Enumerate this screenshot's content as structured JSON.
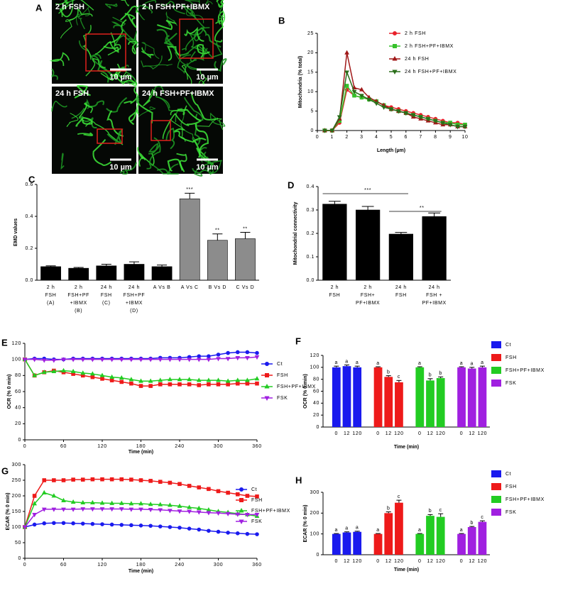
{
  "panel_a": {
    "label": "A",
    "images": [
      {
        "caption": "2 h FSH",
        "scale_bar": "10 µm"
      },
      {
        "caption": "2 h FSH+PF+IBMX",
        "scale_bar": "10 µm"
      },
      {
        "caption": "24 h FSH",
        "scale_bar": "10 µm"
      },
      {
        "caption": "24 h FSH+PF+IBMX",
        "scale_bar": "10 µm"
      }
    ]
  },
  "chart_data": [
    {
      "type": "line",
      "panel": "B",
      "xlabel": "Length (µm)",
      "ylabel": "Mitochondria (% total)",
      "x": [
        0.5,
        1,
        1.5,
        2,
        2.5,
        3,
        3.5,
        4,
        4.5,
        5,
        5.5,
        6,
        6.5,
        7,
        7.5,
        8,
        8.5,
        9,
        9.5,
        10
      ],
      "xlim": [
        0,
        10
      ],
      "xticks": [
        0,
        1,
        2,
        3,
        4,
        5,
        6,
        7,
        8,
        9,
        10
      ],
      "ylim": [
        0,
        25
      ],
      "yticks": [
        0,
        5,
        10,
        15,
        20,
        25
      ],
      "series": [
        {
          "name": "2 h FSH",
          "color": "#e8212a",
          "marker": "circle",
          "values": [
            0,
            0,
            2,
            10.5,
            9,
            8.5,
            8,
            7.5,
            6.5,
            6,
            5.5,
            5,
            4.5,
            4,
            3.5,
            3,
            2.5,
            2,
            2,
            1.5
          ]
        },
        {
          "name": "2 h FSH+PF+IBMX",
          "color": "#36c12a",
          "marker": "square",
          "values": [
            0,
            0,
            2.5,
            11.5,
            9,
            8.5,
            8,
            7.5,
            6.5,
            5.5,
            5,
            4.5,
            4,
            3.5,
            3,
            2.5,
            2,
            2,
            1.5,
            1.5
          ]
        },
        {
          "name": "24 h FSH",
          "color": "#a01818",
          "marker": "triangle",
          "values": [
            0,
            0,
            3,
            20,
            11,
            10.5,
            8.5,
            7.5,
            6.5,
            5.5,
            5,
            4.5,
            3.5,
            3,
            2.5,
            2,
            1.5,
            1.5,
            1,
            1
          ]
        },
        {
          "name": "24 h FSH+PF+IBMX",
          "color": "#2a6e1a",
          "marker": "triangle-down",
          "values": [
            0,
            0,
            3.5,
            15,
            10,
            9,
            8,
            7,
            6,
            5.5,
            5,
            4.5,
            4,
            3.5,
            3,
            2.5,
            2,
            1.5,
            1,
            1
          ]
        }
      ]
    },
    {
      "type": "bar",
      "panel": "C",
      "ylabel": "EMD values",
      "categories": [
        [
          "2 h",
          "FSH",
          "(A)"
        ],
        [
          "2 h",
          "FSH+PF",
          "+IBMX",
          "(B)"
        ],
        [
          "24 h",
          "FSH",
          "(C)"
        ],
        [
          "24 h",
          "FSH+PF",
          "+IBMX",
          "(D)"
        ],
        [
          "A Vs B"
        ],
        [
          "A Vs C"
        ],
        [
          "B Vs D"
        ],
        [
          "C Vs D"
        ]
      ],
      "values": [
        0.085,
        0.075,
        0.09,
        0.1,
        0.085,
        0.51,
        0.25,
        0.26
      ],
      "errors": [
        0.005,
        0.005,
        0.01,
        0.015,
        0.01,
        0.035,
        0.04,
        0.04
      ],
      "colors": [
        "#000000",
        "#000000",
        "#000000",
        "#000000",
        "#000000",
        "#8c8c8c",
        "#8c8c8c",
        "#8c8c8c"
      ],
      "significance": [
        null,
        null,
        null,
        null,
        null,
        "***",
        "**",
        "**"
      ],
      "ylim": [
        0,
        0.6
      ],
      "yticks": [
        {
          "value": 0,
          "label": "0.0"
        },
        0.2,
        0.4,
        0.6
      ]
    },
    {
      "type": "bar",
      "panel": "D",
      "ylabel": "Mitochondrial connectivity",
      "categories": [
        [
          "2 h",
          "FSH"
        ],
        [
          "2 h",
          "FSH+",
          "PF+IBMX"
        ],
        [
          "24 h",
          "FSH"
        ],
        [
          "24 h",
          "FSH +",
          "PF+IBMX"
        ]
      ],
      "values": [
        0.325,
        0.3,
        0.197,
        0.272
      ],
      "errors": [
        0.012,
        0.015,
        0.007,
        0.015
      ],
      "colors": [
        "#000000",
        "#000000",
        "#000000",
        "#000000"
      ],
      "annotations": [
        "***",
        "**"
      ],
      "ylim": [
        0,
        0.4
      ],
      "yticks": [
        {
          "value": 0,
          "label": "0.0"
        },
        0.1,
        0.2,
        0.3,
        0.4
      ]
    },
    {
      "type": "line",
      "panel": "E",
      "xlabel": "Time (min)",
      "ylabel": "OCR (% 0 min)",
      "x": [
        0,
        15,
        30,
        45,
        60,
        75,
        90,
        105,
        120,
        135,
        150,
        165,
        180,
        195,
        210,
        225,
        240,
        255,
        270,
        285,
        300,
        315,
        330,
        345,
        360
      ],
      "xlim": [
        0,
        360
      ],
      "xticks": [
        0,
        60,
        120,
        180,
        240,
        300,
        360
      ],
      "ylim": [
        0,
        120
      ],
      "yticks": [
        0,
        20,
        40,
        60,
        80,
        100,
        120
      ],
      "series": [
        {
          "name": "Ct",
          "color": "#1a1aee",
          "marker": "circle",
          "values": [
            100,
            101,
            101,
            100,
            100,
            101,
            101,
            101,
            101,
            101,
            101,
            101,
            101,
            101,
            102,
            102,
            102,
            103,
            104,
            104,
            106,
            108,
            109,
            109,
            108
          ]
        },
        {
          "name": "FSH",
          "color": "#ee1a1a",
          "marker": "square",
          "values": [
            100,
            80,
            84,
            86,
            84,
            82,
            80,
            78,
            76,
            74,
            72,
            70,
            67,
            67,
            69,
            69,
            69,
            69,
            68,
            69,
            69,
            69,
            70,
            70,
            70
          ]
        },
        {
          "name": "FSH+PF+IBMX",
          "color": "#22cc22",
          "marker": "triangle",
          "values": [
            100,
            80,
            84,
            85,
            86,
            85,
            83,
            82,
            80,
            78,
            77,
            75,
            73,
            73,
            74,
            75,
            75,
            75,
            74,
            74,
            74,
            73,
            74,
            74,
            76
          ]
        },
        {
          "name": "FSK",
          "color": "#a020e0",
          "marker": "triangle-down",
          "values": [
            100,
            100,
            99,
            99,
            100,
            100,
            100,
            100,
            100,
            100,
            100,
            100,
            100,
            100,
            100,
            100,
            100,
            100,
            100,
            100,
            101,
            101,
            102,
            102,
            103
          ]
        }
      ]
    },
    {
      "type": "bar",
      "panel": "F",
      "xlabel": "Time (min)",
      "ylabel": "OCR (% 0 min)",
      "categories": [
        "0",
        "12",
        "120"
      ],
      "ylim": [
        0,
        120
      ],
      "yticks": [
        0,
        20,
        40,
        60,
        80,
        100,
        120
      ],
      "series": [
        {
          "name": "Ct",
          "color": "#1a1aee",
          "values": [
            100,
            102,
            100
          ],
          "errors": [
            2,
            2,
            2
          ],
          "letters": [
            "a",
            "a",
            "a"
          ]
        },
        {
          "name": "FSH",
          "color": "#ee1a1a",
          "values": [
            100,
            84,
            75
          ],
          "errors": [
            1,
            2,
            3
          ],
          "letters": [
            "a",
            "b",
            "c"
          ]
        },
        {
          "name": "FSH+PF+IBMX",
          "color": "#22cc22",
          "values": [
            100,
            78,
            82
          ],
          "errors": [
            1,
            3,
            2
          ],
          "letters": [
            "a",
            "b",
            "b"
          ]
        },
        {
          "name": "FSK",
          "color": "#a020e0",
          "values": [
            100,
            98,
            100
          ],
          "errors": [
            1,
            2,
            2
          ],
          "letters": [
            "a",
            "a",
            "a"
          ]
        }
      ]
    },
    {
      "type": "line",
      "panel": "G",
      "xlabel": "Time (min)",
      "ylabel": "ECAR (% 0 min)",
      "x": [
        0,
        15,
        30,
        45,
        60,
        75,
        90,
        105,
        120,
        135,
        150,
        165,
        180,
        195,
        210,
        225,
        240,
        255,
        270,
        285,
        300,
        315,
        330,
        345,
        360
      ],
      "xlim": [
        0,
        360
      ],
      "xticks": [
        0,
        60,
        120,
        180,
        240,
        300,
        360
      ],
      "ylim": [
        0,
        300
      ],
      "yticks": [
        0,
        50,
        100,
        150,
        200,
        250,
        300
      ],
      "series": [
        {
          "name": "Ct",
          "color": "#1a1aee",
          "marker": "circle",
          "values": [
            100,
            108,
            112,
            113,
            113,
            112,
            111,
            110,
            109,
            108,
            107,
            106,
            105,
            104,
            102,
            100,
            98,
            95,
            92,
            88,
            85,
            82,
            80,
            78,
            77
          ]
        },
        {
          "name": "FSH",
          "color": "#ee1a1a",
          "marker": "square",
          "values": [
            100,
            200,
            250,
            250,
            250,
            252,
            252,
            253,
            253,
            253,
            253,
            252,
            250,
            248,
            245,
            242,
            238,
            232,
            227,
            222,
            215,
            210,
            205,
            200,
            198
          ]
        },
        {
          "name": "FSH+PF+IBMX",
          "color": "#22cc22",
          "marker": "triangle",
          "values": [
            100,
            175,
            210,
            200,
            185,
            180,
            178,
            178,
            177,
            176,
            176,
            175,
            175,
            173,
            172,
            170,
            167,
            163,
            160,
            155,
            150,
            147,
            143,
            140,
            135
          ]
        },
        {
          "name": "FSK",
          "color": "#a020e0",
          "marker": "triangle-down",
          "values": [
            100,
            140,
            157,
            157,
            157,
            157,
            158,
            158,
            158,
            158,
            158,
            157,
            157,
            156,
            155,
            153,
            151,
            150,
            148,
            146,
            145,
            143,
            141,
            140,
            140
          ]
        }
      ]
    },
    {
      "type": "bar",
      "panel": "H",
      "xlabel": "Time (min)",
      "ylabel": "ECAR (% 0 min)",
      "categories": [
        "0",
        "12",
        "120"
      ],
      "ylim": [
        0,
        300
      ],
      "yticks": [
        0,
        100,
        200,
        300
      ],
      "series": [
        {
          "name": "Ct",
          "color": "#1a1aee",
          "values": [
            100,
            107,
            110
          ],
          "errors": [
            2,
            3,
            3
          ],
          "letters": [
            "a",
            "a",
            "a"
          ]
        },
        {
          "name": "FSH",
          "color": "#ee1a1a",
          "values": [
            100,
            200,
            250
          ],
          "errors": [
            2,
            6,
            12
          ],
          "letters": [
            "a",
            "b",
            "c"
          ]
        },
        {
          "name": "FSH+PF+IBMX",
          "color": "#22cc22",
          "values": [
            100,
            187,
            182
          ],
          "errors": [
            2,
            6,
            15
          ],
          "letters": [
            "a",
            "b",
            "c"
          ]
        },
        {
          "name": "FSK",
          "color": "#a020e0",
          "values": [
            100,
            133,
            158
          ],
          "errors": [
            2,
            3,
            5
          ],
          "letters": [
            "a",
            "b",
            "c"
          ]
        }
      ]
    }
  ]
}
